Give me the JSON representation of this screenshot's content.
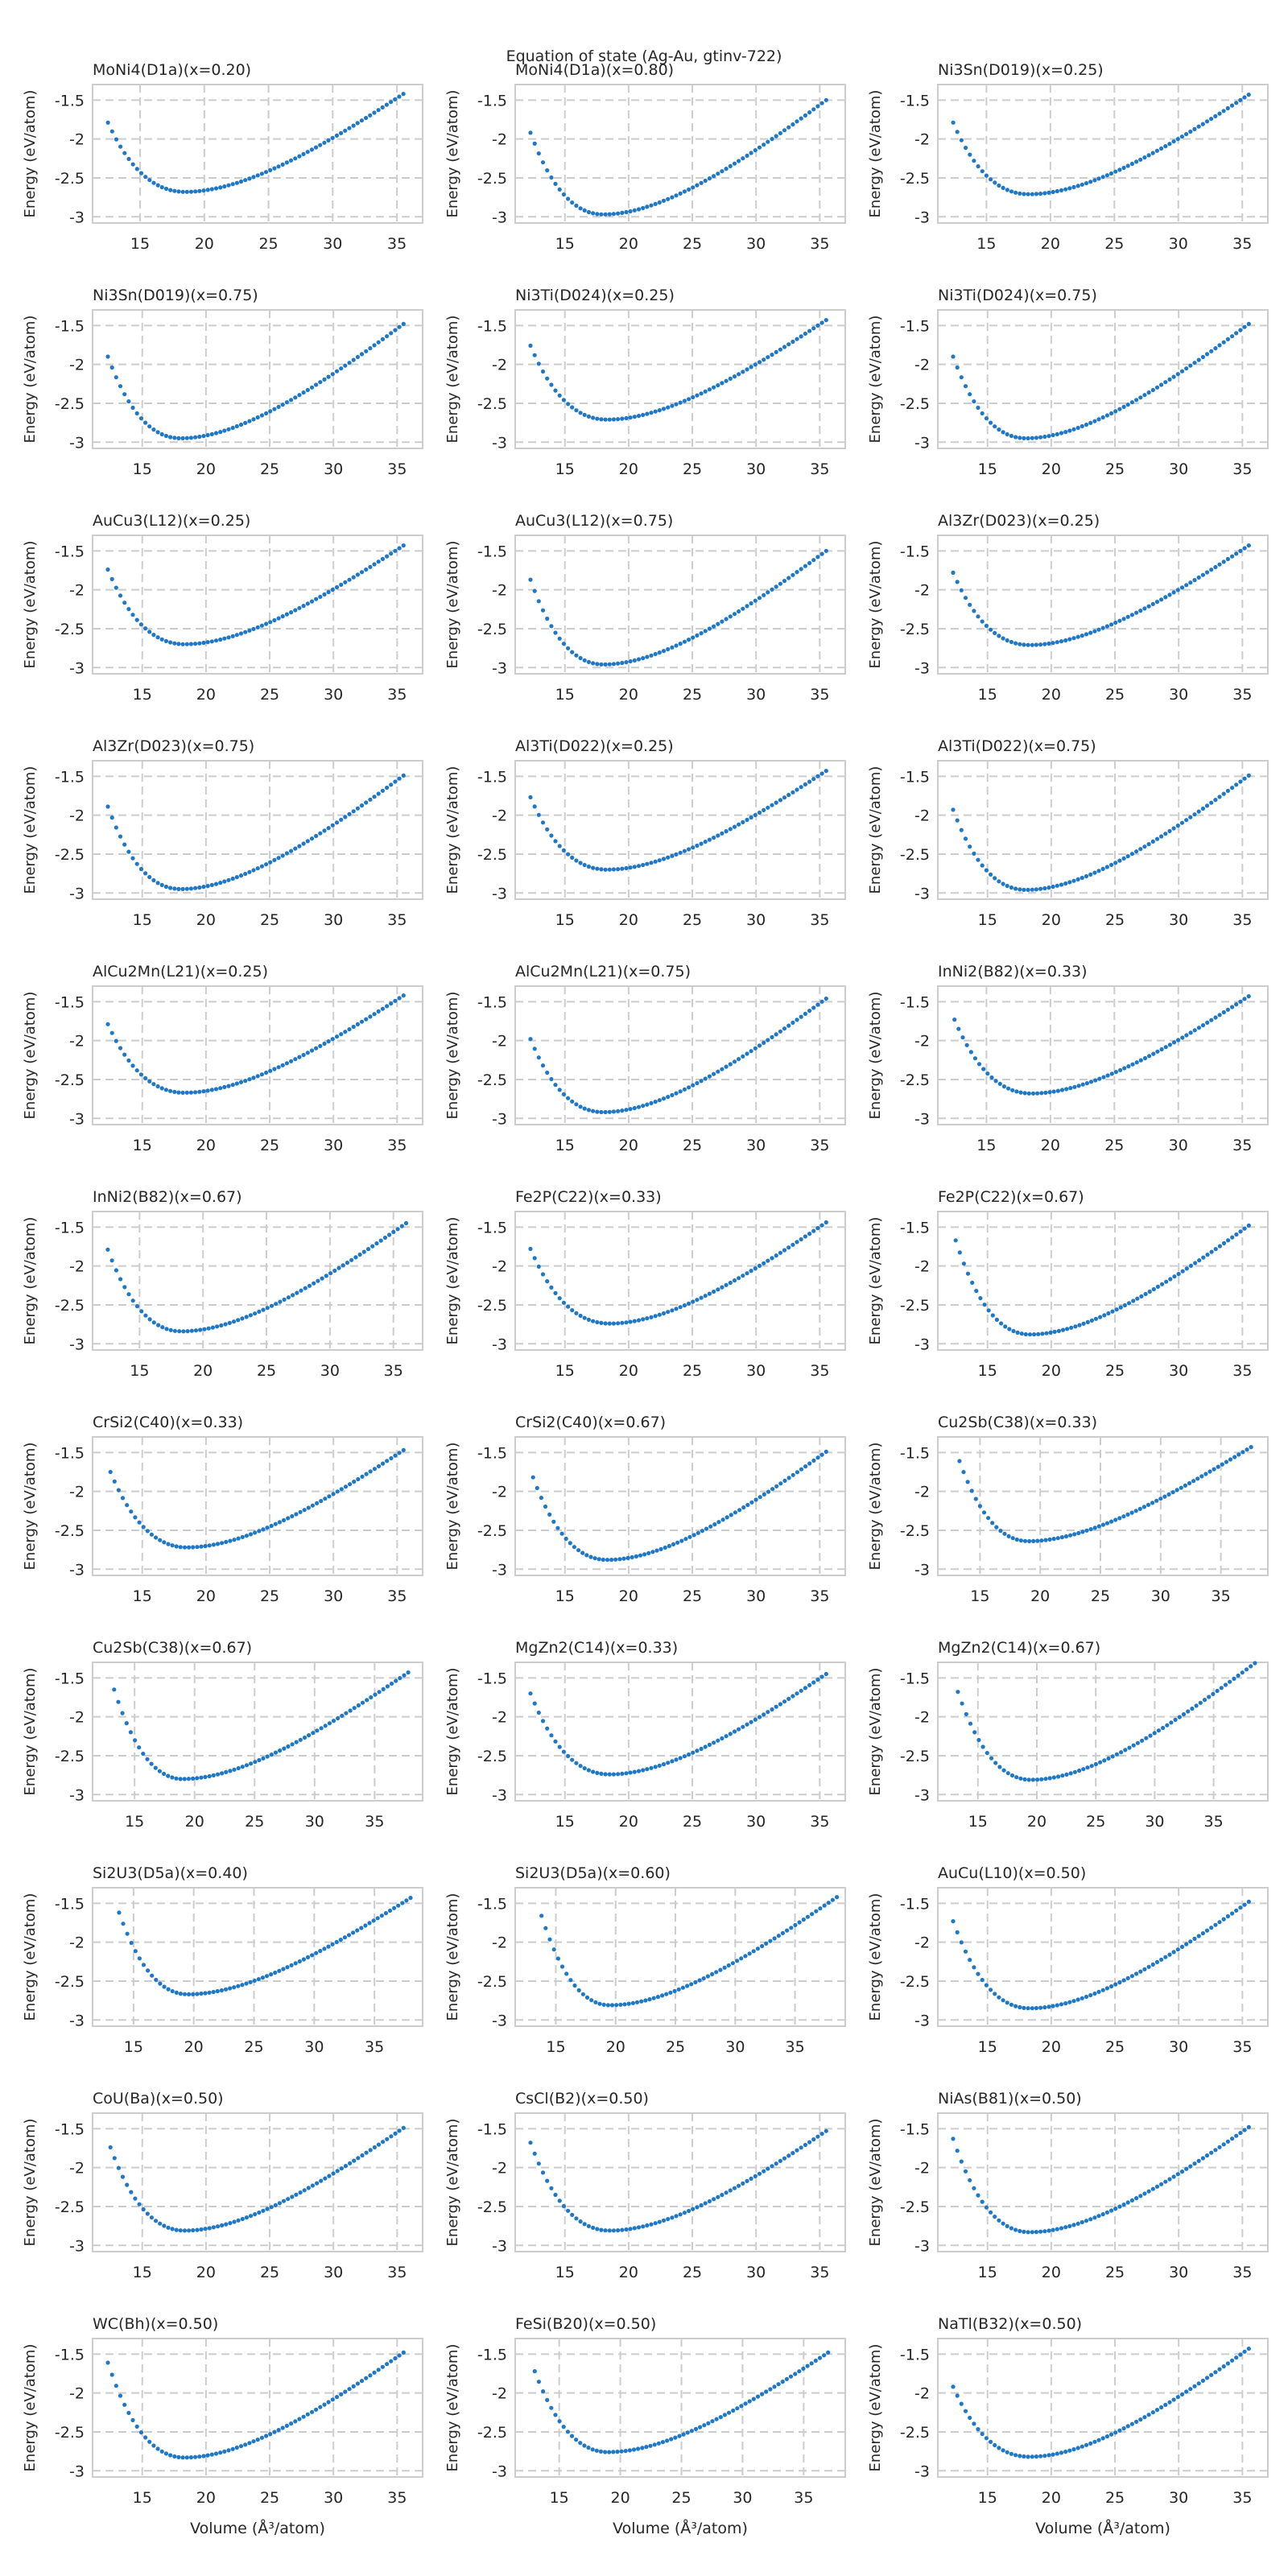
{
  "figure": {
    "suptitle": "Equation of state (Ag-Au, gtinv-722)",
    "xlabel": "Volume (Å³/atom)",
    "ylabel": "Energy (eV/atom)",
    "point_color": "#1f77c7",
    "grid_color": "#cccccc"
  },
  "chart_data": [
    {
      "type": "scatter",
      "title": "MoNi4(D1a)(x=0.20)",
      "eos": {
        "v0": 18.5,
        "e0": -2.68,
        "vmin": 12.5,
        "vmax": 35.5,
        "e_at_vmin": -1.79,
        "e_at_vmax": -1.42
      },
      "xticks": [
        15,
        20,
        25,
        30,
        35
      ],
      "yticks": [
        -1.5,
        -2.0,
        -2.5,
        -3.0
      ],
      "xlabel": "",
      "ylabel": "Energy (eV/atom)",
      "xlim": [
        11.3,
        37.0
      ],
      "ylim": [
        -3.08,
        -1.3
      ],
      "grid": true
    },
    {
      "type": "scatter",
      "title": "MoNi4(D1a)(x=0.80)",
      "eos": {
        "v0": 18.0,
        "e0": -2.97,
        "vmin": 12.3,
        "vmax": 35.5,
        "e_at_vmin": -1.92,
        "e_at_vmax": -1.5
      },
      "xticks": [
        15,
        20,
        25,
        30,
        35
      ],
      "yticks": [
        -1.5,
        -2.0,
        -2.5,
        -3.0
      ],
      "xlabel": "",
      "ylabel": "Energy (eV/atom)",
      "xlim": [
        11.1,
        37.0
      ],
      "ylim": [
        -3.08,
        -1.3
      ],
      "grid": true
    },
    {
      "type": "scatter",
      "title": "Ni3Sn(D019)(x=0.25)",
      "eos": {
        "v0": 18.3,
        "e0": -2.71,
        "vmin": 12.4,
        "vmax": 35.5,
        "e_at_vmin": -1.79,
        "e_at_vmax": -1.43
      },
      "xticks": [
        15,
        20,
        25,
        30,
        35
      ],
      "yticks": [
        -1.5,
        -2.0,
        -2.5,
        -3.0
      ],
      "xlabel": "",
      "ylabel": "Energy (eV/atom)",
      "xlim": [
        11.2,
        37.0
      ],
      "ylim": [
        -3.08,
        -1.3
      ],
      "grid": true
    },
    {
      "type": "scatter",
      "title": "Ni3Sn(D019)(x=0.75)",
      "eos": {
        "v0": 18.0,
        "e0": -2.95,
        "vmin": 12.3,
        "vmax": 35.5,
        "e_at_vmin": -1.9,
        "e_at_vmax": -1.48
      },
      "xticks": [
        15,
        20,
        25,
        30,
        35
      ],
      "yticks": [
        -1.5,
        -2.0,
        -2.5,
        -3.0
      ],
      "xlabel": "",
      "ylabel": "Energy (eV/atom)",
      "xlim": [
        11.1,
        37.0
      ],
      "ylim": [
        -3.08,
        -1.3
      ],
      "grid": true
    },
    {
      "type": "scatter",
      "title": "Ni3Ti(D024)(x=0.25)",
      "eos": {
        "v0": 18.3,
        "e0": -2.71,
        "vmin": 12.3,
        "vmax": 35.5,
        "e_at_vmin": -1.76,
        "e_at_vmax": -1.43
      },
      "xticks": [
        15,
        20,
        25,
        30,
        35
      ],
      "yticks": [
        -1.5,
        -2.0,
        -2.5,
        -3.0
      ],
      "xlabel": "",
      "ylabel": "Energy (eV/atom)",
      "xlim": [
        11.1,
        37.0
      ],
      "ylim": [
        -3.08,
        -1.3
      ],
      "grid": true
    },
    {
      "type": "scatter",
      "title": "Ni3Ti(D024)(x=0.75)",
      "eos": {
        "v0": 18.0,
        "e0": -2.95,
        "vmin": 12.3,
        "vmax": 35.5,
        "e_at_vmin": -1.9,
        "e_at_vmax": -1.48
      },
      "xticks": [
        15,
        20,
        25,
        30,
        35
      ],
      "yticks": [
        -1.5,
        -2.0,
        -2.5,
        -3.0
      ],
      "xlabel": "",
      "ylabel": "Energy (eV/atom)",
      "xlim": [
        11.1,
        37.0
      ],
      "ylim": [
        -3.08,
        -1.3
      ],
      "grid": true
    },
    {
      "type": "scatter",
      "title": "AuCu3(L12)(x=0.25)",
      "eos": {
        "v0": 18.3,
        "e0": -2.7,
        "vmin": 12.3,
        "vmax": 35.5,
        "e_at_vmin": -1.74,
        "e_at_vmax": -1.43
      },
      "xticks": [
        15,
        20,
        25,
        30,
        35
      ],
      "yticks": [
        -1.5,
        -2.0,
        -2.5,
        -3.0
      ],
      "xlabel": "",
      "ylabel": "Energy (eV/atom)",
      "xlim": [
        11.1,
        37.0
      ],
      "ylim": [
        -3.08,
        -1.3
      ],
      "grid": true
    },
    {
      "type": "scatter",
      "title": "AuCu3(L12)(x=0.75)",
      "eos": {
        "v0": 18.0,
        "e0": -2.96,
        "vmin": 12.3,
        "vmax": 35.5,
        "e_at_vmin": -1.87,
        "e_at_vmax": -1.5
      },
      "xticks": [
        15,
        20,
        25,
        30,
        35
      ],
      "yticks": [
        -1.5,
        -2.0,
        -2.5,
        -3.0
      ],
      "xlabel": "",
      "ylabel": "Energy (eV/atom)",
      "xlim": [
        11.1,
        37.0
      ],
      "ylim": [
        -3.08,
        -1.3
      ],
      "grid": true
    },
    {
      "type": "scatter",
      "title": "Al3Zr(D023)(x=0.25)",
      "eos": {
        "v0": 18.3,
        "e0": -2.71,
        "vmin": 12.3,
        "vmax": 35.5,
        "e_at_vmin": -1.78,
        "e_at_vmax": -1.43
      },
      "xticks": [
        15,
        20,
        25,
        30,
        35
      ],
      "yticks": [
        -1.5,
        -2.0,
        -2.5,
        -3.0
      ],
      "xlabel": "",
      "ylabel": "Energy (eV/atom)",
      "xlim": [
        11.1,
        37.0
      ],
      "ylim": [
        -3.08,
        -1.3
      ],
      "grid": true
    },
    {
      "type": "scatter",
      "title": "Al3Zr(D023)(x=0.75)",
      "eos": {
        "v0": 18.0,
        "e0": -2.95,
        "vmin": 12.3,
        "vmax": 35.5,
        "e_at_vmin": -1.89,
        "e_at_vmax": -1.49
      },
      "xticks": [
        15,
        20,
        25,
        30,
        35
      ],
      "yticks": [
        -1.5,
        -2.0,
        -2.5,
        -3.0
      ],
      "xlabel": "",
      "ylabel": "Energy (eV/atom)",
      "xlim": [
        11.1,
        37.0
      ],
      "ylim": [
        -3.08,
        -1.3
      ],
      "grid": true
    },
    {
      "type": "scatter",
      "title": "Al3Ti(D022)(x=0.25)",
      "eos": {
        "v0": 18.3,
        "e0": -2.7,
        "vmin": 12.3,
        "vmax": 35.5,
        "e_at_vmin": -1.77,
        "e_at_vmax": -1.43
      },
      "xticks": [
        15,
        20,
        25,
        30,
        35
      ],
      "yticks": [
        -1.5,
        -2.0,
        -2.5,
        -3.0
      ],
      "xlabel": "",
      "ylabel": "Energy (eV/atom)",
      "xlim": [
        11.1,
        37.0
      ],
      "ylim": [
        -3.08,
        -1.3
      ],
      "grid": true
    },
    {
      "type": "scatter",
      "title": "Al3Ti(D022)(x=0.75)",
      "eos": {
        "v0": 18.0,
        "e0": -2.96,
        "vmin": 12.3,
        "vmax": 35.5,
        "e_at_vmin": -1.93,
        "e_at_vmax": -1.49
      },
      "xticks": [
        15,
        20,
        25,
        30,
        35
      ],
      "yticks": [
        -1.5,
        -2.0,
        -2.5,
        -3.0
      ],
      "xlabel": "",
      "ylabel": "Energy (eV/atom)",
      "xlim": [
        11.1,
        37.0
      ],
      "ylim": [
        -3.08,
        -1.3
      ],
      "grid": true
    },
    {
      "type": "scatter",
      "title": "AlCu2Mn(L21)(x=0.25)",
      "eos": {
        "v0": 18.3,
        "e0": -2.67,
        "vmin": 12.3,
        "vmax": 35.5,
        "e_at_vmin": -1.79,
        "e_at_vmax": -1.42
      },
      "xticks": [
        15,
        20,
        25,
        30,
        35
      ],
      "yticks": [
        -1.5,
        -2.0,
        -2.5,
        -3.0
      ],
      "xlabel": "",
      "ylabel": "Energy (eV/atom)",
      "xlim": [
        11.1,
        37.0
      ],
      "ylim": [
        -3.08,
        -1.3
      ],
      "grid": true
    },
    {
      "type": "scatter",
      "title": "AlCu2Mn(L21)(x=0.75)",
      "eos": {
        "v0": 18.0,
        "e0": -2.92,
        "vmin": 12.3,
        "vmax": 35.5,
        "e_at_vmin": -1.98,
        "e_at_vmax": -1.46
      },
      "xticks": [
        15,
        20,
        25,
        30,
        35
      ],
      "yticks": [
        -1.5,
        -2.0,
        -2.5,
        -3.0
      ],
      "xlabel": "",
      "ylabel": "Energy (eV/atom)",
      "xlim": [
        11.1,
        37.0
      ],
      "ylim": [
        -3.08,
        -1.3
      ],
      "grid": true
    },
    {
      "type": "scatter",
      "title": "InNi2(B82)(x=0.33)",
      "eos": {
        "v0": 18.5,
        "e0": -2.68,
        "vmin": 12.5,
        "vmax": 35.5,
        "e_at_vmin": -1.73,
        "e_at_vmax": -1.43
      },
      "xticks": [
        15,
        20,
        25,
        30,
        35
      ],
      "yticks": [
        -1.5,
        -2.0,
        -2.5,
        -3.0
      ],
      "xlabel": "",
      "ylabel": "Energy (eV/atom)",
      "xlim": [
        11.2,
        37.0
      ],
      "ylim": [
        -3.08,
        -1.3
      ],
      "grid": true
    },
    {
      "type": "scatter",
      "title": "InNi2(B82)(x=0.67)",
      "eos": {
        "v0": 18.3,
        "e0": -2.84,
        "vmin": 12.5,
        "vmax": 36.0,
        "e_at_vmin": -1.79,
        "e_at_vmax": -1.45
      },
      "xticks": [
        15,
        20,
        25,
        30,
        35
      ],
      "yticks": [
        -1.5,
        -2.0,
        -2.5,
        -3.0
      ],
      "xlabel": "",
      "ylabel": "Energy (eV/atom)",
      "xlim": [
        11.3,
        37.3
      ],
      "ylim": [
        -3.08,
        -1.3
      ],
      "grid": true
    },
    {
      "type": "scatter",
      "title": "Fe2P(C22)(x=0.33)",
      "eos": {
        "v0": 18.5,
        "e0": -2.74,
        "vmin": 12.3,
        "vmax": 35.5,
        "e_at_vmin": -1.78,
        "e_at_vmax": -1.44
      },
      "xticks": [
        15,
        20,
        25,
        30,
        35
      ],
      "yticks": [
        -1.5,
        -2.0,
        -2.5,
        -3.0
      ],
      "xlabel": "",
      "ylabel": "Energy (eV/atom)",
      "xlim": [
        11.1,
        37.0
      ],
      "ylim": [
        -3.08,
        -1.3
      ],
      "grid": true
    },
    {
      "type": "scatter",
      "title": "Fe2P(C22)(x=0.67)",
      "eos": {
        "v0": 18.3,
        "e0": -2.88,
        "vmin": 12.5,
        "vmax": 35.5,
        "e_at_vmin": -1.67,
        "e_at_vmax": -1.48
      },
      "xticks": [
        15,
        20,
        25,
        30,
        35
      ],
      "yticks": [
        -1.5,
        -2.0,
        -2.5,
        -3.0
      ],
      "xlabel": "",
      "ylabel": "Energy (eV/atom)",
      "xlim": [
        11.1,
        37.0
      ],
      "ylim": [
        -3.08,
        -1.3
      ],
      "grid": true
    },
    {
      "type": "scatter",
      "title": "CrSi2(C40)(x=0.33)",
      "eos": {
        "v0": 18.5,
        "e0": -2.72,
        "vmin": 12.5,
        "vmax": 35.5,
        "e_at_vmin": -1.75,
        "e_at_vmax": -1.47
      },
      "xticks": [
        15,
        20,
        25,
        30,
        35
      ],
      "yticks": [
        -1.5,
        -2.0,
        -2.5,
        -3.0
      ],
      "xlabel": "",
      "ylabel": "Energy (eV/atom)",
      "xlim": [
        11.1,
        37.0
      ],
      "ylim": [
        -3.08,
        -1.3
      ],
      "grid": true
    },
    {
      "type": "scatter",
      "title": "CrSi2(C40)(x=0.67)",
      "eos": {
        "v0": 18.3,
        "e0": -2.88,
        "vmin": 12.5,
        "vmax": 35.5,
        "e_at_vmin": -1.82,
        "e_at_vmax": -1.49
      },
      "xticks": [
        15,
        20,
        25,
        30,
        35
      ],
      "yticks": [
        -1.5,
        -2.0,
        -2.5,
        -3.0
      ],
      "xlabel": "",
      "ylabel": "Energy (eV/atom)",
      "xlim": [
        11.1,
        37.0
      ],
      "ylim": [
        -3.08,
        -1.3
      ],
      "grid": true
    },
    {
      "type": "scatter",
      "title": "Cu2Sb(C38)(x=0.33)",
      "eos": {
        "v0": 19.0,
        "e0": -2.64,
        "vmin": 13.3,
        "vmax": 37.5,
        "e_at_vmin": -1.61,
        "e_at_vmax": -1.43
      },
      "xticks": [
        15,
        20,
        25,
        30,
        35
      ],
      "yticks": [
        -1.5,
        -2.0,
        -2.5,
        -3.0
      ],
      "xlabel": "",
      "ylabel": "Energy (eV/atom)",
      "xlim": [
        11.5,
        38.9
      ],
      "ylim": [
        -3.08,
        -1.3
      ],
      "grid": true
    },
    {
      "type": "scatter",
      "title": "Cu2Sb(C38)(x=0.67)",
      "eos": {
        "v0": 19.0,
        "e0": -2.8,
        "vmin": 13.3,
        "vmax": 37.8,
        "e_at_vmin": -1.65,
        "e_at_vmax": -1.43
      },
      "xticks": [
        15,
        20,
        25,
        30,
        35
      ],
      "yticks": [
        -1.5,
        -2.0,
        -2.5,
        -3.0
      ],
      "xlabel": "",
      "ylabel": "Energy (eV/atom)",
      "xlim": [
        11.5,
        39.0
      ],
      "ylim": [
        -3.08,
        -1.3
      ],
      "grid": true
    },
    {
      "type": "scatter",
      "title": "MgZn2(C14)(x=0.33)",
      "eos": {
        "v0": 18.5,
        "e0": -2.74,
        "vmin": 12.3,
        "vmax": 35.5,
        "e_at_vmin": -1.7,
        "e_at_vmax": -1.45
      },
      "xticks": [
        15,
        20,
        25,
        30,
        35
      ],
      "yticks": [
        -1.5,
        -2.0,
        -2.5,
        -3.0
      ],
      "xlabel": "",
      "ylabel": "Energy (eV/atom)",
      "xlim": [
        11.1,
        37.0
      ],
      "ylim": [
        -3.08,
        -1.3
      ],
      "grid": true
    },
    {
      "type": "scatter",
      "title": "MgZn2(C14)(x=0.67)",
      "eos": {
        "v0": 19.5,
        "e0": -2.81,
        "vmin": 13.3,
        "vmax": 38.5,
        "e_at_vmin": -1.68,
        "e_at_vmax": -1.31
      },
      "xticks": [
        15,
        20,
        25,
        30,
        35
      ],
      "yticks": [
        -1.5,
        -2.0,
        -2.5,
        -3.0
      ],
      "xlabel": "",
      "ylabel": "Energy (eV/atom)",
      "xlim": [
        11.6,
        39.6
      ],
      "ylim": [
        -3.08,
        -1.3
      ],
      "grid": true
    },
    {
      "type": "scatter",
      "title": "Si2U3(D5a)(x=0.40)",
      "eos": {
        "v0": 19.5,
        "e0": -2.67,
        "vmin": 13.8,
        "vmax": 38.0,
        "e_at_vmin": -1.62,
        "e_at_vmax": -1.43
      },
      "xticks": [
        15,
        20,
        25,
        30,
        35
      ],
      "yticks": [
        -1.5,
        -2.0,
        -2.5,
        -3.0
      ],
      "xlabel": "",
      "ylabel": "Energy (eV/atom)",
      "xlim": [
        11.6,
        39.0
      ],
      "ylim": [
        -3.08,
        -1.3
      ],
      "grid": true
    },
    {
      "type": "scatter",
      "title": "Si2U3(D5a)(x=0.60)",
      "eos": {
        "v0": 19.5,
        "e0": -2.81,
        "vmin": 13.8,
        "vmax": 38.5,
        "e_at_vmin": -1.66,
        "e_at_vmax": -1.42
      },
      "xticks": [
        15,
        20,
        25,
        30,
        35
      ],
      "yticks": [
        -1.5,
        -2.0,
        -2.5,
        -3.0
      ],
      "xlabel": "",
      "ylabel": "Energy (eV/atom)",
      "xlim": [
        11.6,
        39.2
      ],
      "ylim": [
        -3.08,
        -1.3
      ],
      "grid": true
    },
    {
      "type": "scatter",
      "title": "AuCu(L10)(x=0.50)",
      "eos": {
        "v0": 18.3,
        "e0": -2.85,
        "vmin": 12.3,
        "vmax": 35.5,
        "e_at_vmin": -1.73,
        "e_at_vmax": -1.48
      },
      "xticks": [
        15,
        20,
        25,
        30,
        35
      ],
      "yticks": [
        -1.5,
        -2.0,
        -2.5,
        -3.0
      ],
      "xlabel": "",
      "ylabel": "Energy (eV/atom)",
      "xlim": [
        11.1,
        37.0
      ],
      "ylim": [
        -3.08,
        -1.3
      ],
      "grid": true
    },
    {
      "type": "scatter",
      "title": "CoU(Ba)(x=0.50)",
      "eos": {
        "v0": 18.3,
        "e0": -2.81,
        "vmin": 12.5,
        "vmax": 35.5,
        "e_at_vmin": -1.74,
        "e_at_vmax": -1.49
      },
      "xticks": [
        15,
        20,
        25,
        30,
        35
      ],
      "yticks": [
        -1.5,
        -2.0,
        -2.5,
        -3.0
      ],
      "xlabel": "",
      "ylabel": "Energy (eV/atom)",
      "xlim": [
        11.1,
        37.0
      ],
      "ylim": [
        -3.08,
        -1.3
      ],
      "grid": true
    },
    {
      "type": "scatter",
      "title": "CsCl(B2)(x=0.50)",
      "eos": {
        "v0": 18.5,
        "e0": -2.81,
        "vmin": 12.3,
        "vmax": 35.5,
        "e_at_vmin": -1.68,
        "e_at_vmax": -1.53
      },
      "xticks": [
        15,
        20,
        25,
        30,
        35
      ],
      "yticks": [
        -1.5,
        -2.0,
        -2.5,
        -3.0
      ],
      "xlabel": "",
      "ylabel": "Energy (eV/atom)",
      "xlim": [
        11.1,
        37.0
      ],
      "ylim": [
        -3.08,
        -1.3
      ],
      "grid": true
    },
    {
      "type": "scatter",
      "title": "NiAs(B81)(x=0.50)",
      "eos": {
        "v0": 18.3,
        "e0": -2.83,
        "vmin": 12.3,
        "vmax": 35.5,
        "e_at_vmin": -1.63,
        "e_at_vmax": -1.48
      },
      "xticks": [
        15,
        20,
        25,
        30,
        35
      ],
      "yticks": [
        -1.5,
        -2.0,
        -2.5,
        -3.0
      ],
      "xlabel": "",
      "ylabel": "Energy (eV/atom)",
      "xlim": [
        11.1,
        37.0
      ],
      "ylim": [
        -3.08,
        -1.3
      ],
      "grid": true
    },
    {
      "type": "scatter",
      "title": "WC(Bh)(x=0.50)",
      "eos": {
        "v0": 18.3,
        "e0": -2.83,
        "vmin": 12.3,
        "vmax": 35.5,
        "e_at_vmin": -1.61,
        "e_at_vmax": -1.48
      },
      "xticks": [
        15,
        20,
        25,
        30,
        35
      ],
      "yticks": [
        -1.5,
        -2.0,
        -2.5,
        -3.0
      ],
      "xlabel": "Volume (Å³/atom)",
      "ylabel": "Energy (eV/atom)",
      "xlim": [
        11.1,
        37.0
      ],
      "ylim": [
        -3.08,
        -1.3
      ],
      "grid": true
    },
    {
      "type": "scatter",
      "title": "FeSi(B20)(x=0.50)",
      "eos": {
        "v0": 19.0,
        "e0": -2.76,
        "vmin": 13.0,
        "vmax": 37.0,
        "e_at_vmin": -1.72,
        "e_at_vmax": -1.48
      },
      "xticks": [
        15,
        20,
        25,
        30,
        35
      ],
      "yticks": [
        -1.5,
        -2.0,
        -2.5,
        -3.0
      ],
      "xlabel": "Volume (Å³/atom)",
      "ylabel": "Energy (eV/atom)",
      "xlim": [
        11.4,
        38.4
      ],
      "ylim": [
        -3.08,
        -1.3
      ],
      "grid": true
    },
    {
      "type": "scatter",
      "title": "NaTl(B32)(x=0.50)",
      "eos": {
        "v0": 18.3,
        "e0": -2.82,
        "vmin": 12.3,
        "vmax": 35.5,
        "e_at_vmin": -1.92,
        "e_at_vmax": -1.43
      },
      "xticks": [
        15,
        20,
        25,
        30,
        35
      ],
      "yticks": [
        -1.5,
        -2.0,
        -2.5,
        -3.0
      ],
      "xlabel": "Volume (Å³/atom)",
      "ylabel": "Energy (eV/atom)",
      "xlim": [
        11.1,
        37.0
      ],
      "ylim": [
        -3.08,
        -1.3
      ],
      "grid": true
    }
  ]
}
